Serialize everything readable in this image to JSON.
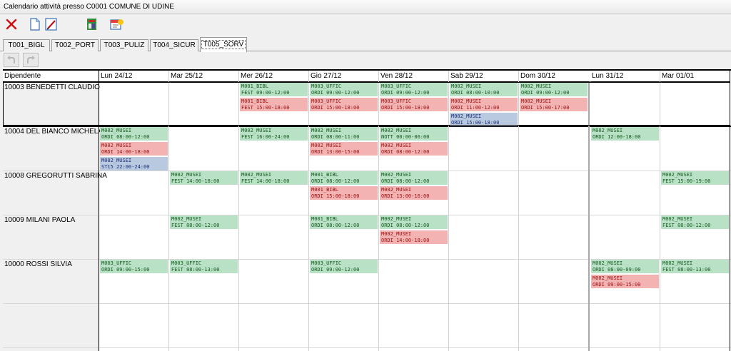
{
  "window": {
    "title": "Calendario attività presso C0001 COMUNE DI UDINE"
  },
  "toolbar": {
    "buttons": [
      "close",
      "new",
      "edit",
      "report",
      "wizard"
    ]
  },
  "tabs": [
    {
      "label": "T001_BIGL",
      "active": false
    },
    {
      "label": "T002_PORT",
      "active": false
    },
    {
      "label": "T003_PULIZ",
      "active": false
    },
    {
      "label": "T004_SICUR",
      "active": false
    },
    {
      "label": "T005_SORV",
      "active": true
    }
  ],
  "grid": {
    "employee_header": "Dipendente",
    "days": [
      "Lun 24/12",
      "Mar 25/12",
      "Mer 26/12",
      "Gio 27/12",
      "Ven 28/12",
      "Sab 29/12",
      "Dom 30/12",
      "Lun 31/12",
      "Mar 01/01"
    ],
    "rows": [
      {
        "name": "10003 BENEDETTI CLAUDIO",
        "selected": true,
        "days": [
          [],
          [],
          [
            {
              "code": "M001_BIBL",
              "time": "FEST 09:00-12:00",
              "color": "green"
            },
            {
              "code": "M001_BIBL",
              "time": "FEST 15:00-18:00",
              "color": "red"
            }
          ],
          [
            {
              "code": "M003_UFFIC",
              "time": "ORDI 09:00-12:00",
              "color": "green"
            },
            {
              "code": "M003_UFFIC",
              "time": "ORDI 15:00-18:00",
              "color": "red"
            }
          ],
          [
            {
              "code": "M003_UFFIC",
              "time": "ORDI 09:00-12:00",
              "color": "green"
            },
            {
              "code": "M003_UFFIC",
              "time": "ORDI 15:00-18:00",
              "color": "red"
            }
          ],
          [
            {
              "code": "M002_MUSEI",
              "time": "ORDI 08:00-10:00",
              "color": "green"
            },
            {
              "code": "M002_MUSEI",
              "time": "ORDI 11:00-12:00",
              "color": "red"
            },
            {
              "code": "M002_MUSEI",
              "time": "ORDI 15:00-18:00",
              "color": "blue"
            }
          ],
          [
            {
              "code": "M002_MUSEI",
              "time": "ORDI 09:00-12:00",
              "color": "green"
            },
            {
              "code": "M002_MUSEI",
              "time": "ORDI 15:00-17:00",
              "color": "red"
            }
          ],
          [],
          []
        ]
      },
      {
        "name": "10004 DEL BIANCO MICHELA",
        "selected": false,
        "days": [
          [
            {
              "code": "M002_MUSEI",
              "time": "ORDI 08:00-12:00",
              "color": "green"
            },
            {
              "code": "M002_MUSEI",
              "time": "ORDI 14:00-18:00",
              "color": "red"
            },
            {
              "code": "M002_MUSEI",
              "time": "ST15 22:00-24:00",
              "color": "blue"
            }
          ],
          [],
          [
            {
              "code": "M002_MUSEI",
              "time": "FEST 16:00-24:00",
              "color": "green"
            }
          ],
          [
            {
              "code": "M002_MUSEI",
              "time": "ORDI 08:00-11:00",
              "color": "green"
            },
            {
              "code": "M002_MUSEI",
              "time": "ORDI 13:00-15:00",
              "color": "red"
            }
          ],
          [
            {
              "code": "M002_MUSEI",
              "time": "NOTT 00:00-06:00",
              "color": "green"
            },
            {
              "code": "M002_MUSEI",
              "time": "ORDI 08:00-12:00",
              "color": "red"
            }
          ],
          [],
          [],
          [
            {
              "code": "M002_MUSEI",
              "time": "ORDI 12:00-18:00",
              "color": "green"
            }
          ],
          []
        ]
      },
      {
        "name": "10008 GREGORUTTI SABRINA",
        "selected": false,
        "days": [
          [],
          [
            {
              "code": "M002_MUSEI",
              "time": "FEST 14:00-18:00",
              "color": "green"
            }
          ],
          [
            {
              "code": "M002_MUSEI",
              "time": "FEST 14:00-18:00",
              "color": "green"
            }
          ],
          [
            {
              "code": "M001_BIBL",
              "time": "ORDI 08:00-12:00",
              "color": "green"
            },
            {
              "code": "M001_BIBL",
              "time": "ORDI 15:00-18:00",
              "color": "red"
            }
          ],
          [
            {
              "code": "M002_MUSEI",
              "time": "ORDI 08:00-12:00",
              "color": "green"
            },
            {
              "code": "M002_MUSEI",
              "time": "ORDI 13:00-16:00",
              "color": "red"
            }
          ],
          [],
          [],
          [],
          [
            {
              "code": "M002_MUSEI",
              "time": "FEST 15:00-19:00",
              "color": "green"
            }
          ]
        ]
      },
      {
        "name": "10009 MILANI PAOLA",
        "selected": false,
        "days": [
          [],
          [
            {
              "code": "M002_MUSEI",
              "time": "FEST 08:00-12:00",
              "color": "green"
            }
          ],
          [],
          [
            {
              "code": "M001_BIBL",
              "time": "ORDI 08:00-12:00",
              "color": "green"
            }
          ],
          [
            {
              "code": "M002_MUSEI",
              "time": "ORDI 08:00-12:00",
              "color": "green"
            },
            {
              "code": "M002_MUSEI",
              "time": "ORDI 14:00-18:00",
              "color": "red"
            }
          ],
          [],
          [],
          [],
          [
            {
              "code": "M002_MUSEI",
              "time": "FEST 08:00-12:00",
              "color": "green"
            }
          ]
        ]
      },
      {
        "name": "10000 ROSSI SILVIA",
        "selected": false,
        "days": [
          [
            {
              "code": "M003_UFFIC",
              "time": "ORDI 09:00-15:00",
              "color": "green"
            }
          ],
          [
            {
              "code": "M003_UFFIC",
              "time": "FEST 08:00-13:00",
              "color": "green"
            }
          ],
          [],
          [
            {
              "code": "M003_UFFIC",
              "time": "ORDI 09:00-12:00",
              "color": "green"
            }
          ],
          [],
          [],
          [],
          [
            {
              "code": "M002_MUSEI",
              "time": "ORDI 08:00-09:00",
              "color": "green"
            },
            {
              "code": "M002_MUSEI",
              "time": "ORDI 09:00-15:00",
              "color": "red"
            }
          ],
          [
            {
              "code": "M002_MUSEI",
              "time": "FEST 08:00-13:00",
              "color": "green"
            }
          ]
        ]
      }
    ]
  }
}
